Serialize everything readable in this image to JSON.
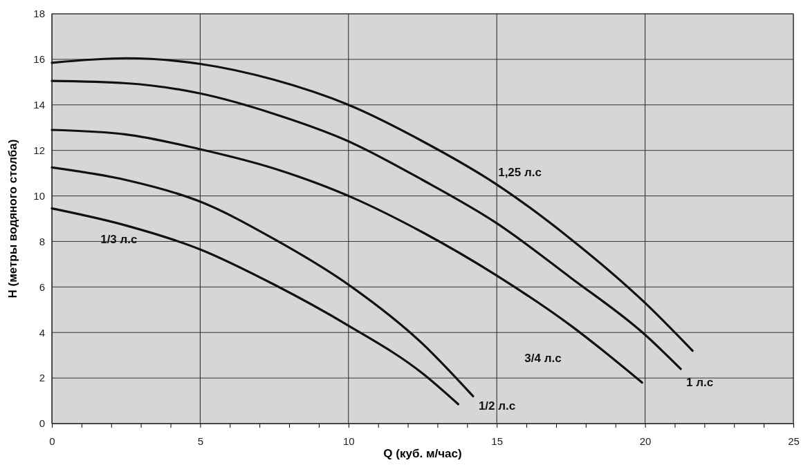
{
  "chart_data": {
    "type": "line",
    "xlabel": "Q (куб. м/час)",
    "ylabel": "H (метры водяного столба)",
    "xlim": [
      0,
      25
    ],
    "ylim": [
      0,
      18
    ],
    "xticks": [
      0,
      {
        "value": 1,
        "label": null
      },
      {
        "value": 2,
        "label": null
      },
      {
        "value": 3,
        "label": null
      },
      {
        "value": 4,
        "label": null
      },
      5,
      {
        "value": 6,
        "label": null
      },
      {
        "value": 7,
        "label": null
      },
      {
        "value": 8,
        "label": null
      },
      {
        "value": 9,
        "label": null
      },
      10,
      {
        "value": 11,
        "label": null
      },
      {
        "value": 12,
        "label": null
      },
      {
        "value": 13,
        "label": null
      },
      {
        "value": 14,
        "label": null
      },
      15,
      {
        "value": 16,
        "label": null
      },
      {
        "value": 17,
        "label": null
      },
      {
        "value": 18,
        "label": null
      },
      {
        "value": 19,
        "label": null
      },
      20,
      {
        "value": 21,
        "label": null
      },
      {
        "value": 22,
        "label": null
      },
      {
        "value": 23,
        "label": null
      },
      {
        "value": 24,
        "label": null
      },
      25
    ],
    "yticks": [
      0,
      2,
      4,
      6,
      8,
      10,
      12,
      14,
      16,
      18
    ],
    "grid": true,
    "legend": false,
    "marker": "none",
    "line_style": "solid",
    "series": [
      {
        "name": "1,25 л.с",
        "color": "#111111",
        "x": [
          0,
          2.5,
          5,
          7.5,
          10,
          12.5,
          15,
          17.5,
          20,
          21.6
        ],
        "values": [
          15.85,
          16.05,
          15.8,
          15.1,
          14.0,
          12.4,
          10.5,
          8.1,
          5.3,
          3.2
        ]
      },
      {
        "name": "1 л.с",
        "color": "#111111",
        "x": [
          0,
          2.5,
          5,
          7.5,
          10,
          12.5,
          15,
          17.5,
          20,
          21.2
        ],
        "values": [
          15.05,
          14.95,
          14.5,
          13.6,
          12.4,
          10.7,
          8.8,
          6.4,
          3.9,
          2.4
        ]
      },
      {
        "name": "3/4 л.с",
        "color": "#111111",
        "x": [
          0,
          2.5,
          5,
          7.5,
          10,
          12.5,
          15,
          17.5,
          19.9
        ],
        "values": [
          12.9,
          12.7,
          12.05,
          11.2,
          10.0,
          8.4,
          6.5,
          4.3,
          1.8
        ]
      },
      {
        "name": "1/2 л.с",
        "color": "#111111",
        "x": [
          0,
          2.5,
          5,
          7.5,
          10,
          12.5,
          14.2
        ],
        "values": [
          11.25,
          10.7,
          9.75,
          8.1,
          6.1,
          3.5,
          1.2
        ]
      },
      {
        "name": "1/3 л.с",
        "color": "#111111",
        "x": [
          0,
          2.5,
          5,
          7.5,
          10,
          12.5,
          13.7
        ],
        "values": [
          9.45,
          8.7,
          7.65,
          6.1,
          4.3,
          2.2,
          0.85
        ]
      }
    ]
  }
}
